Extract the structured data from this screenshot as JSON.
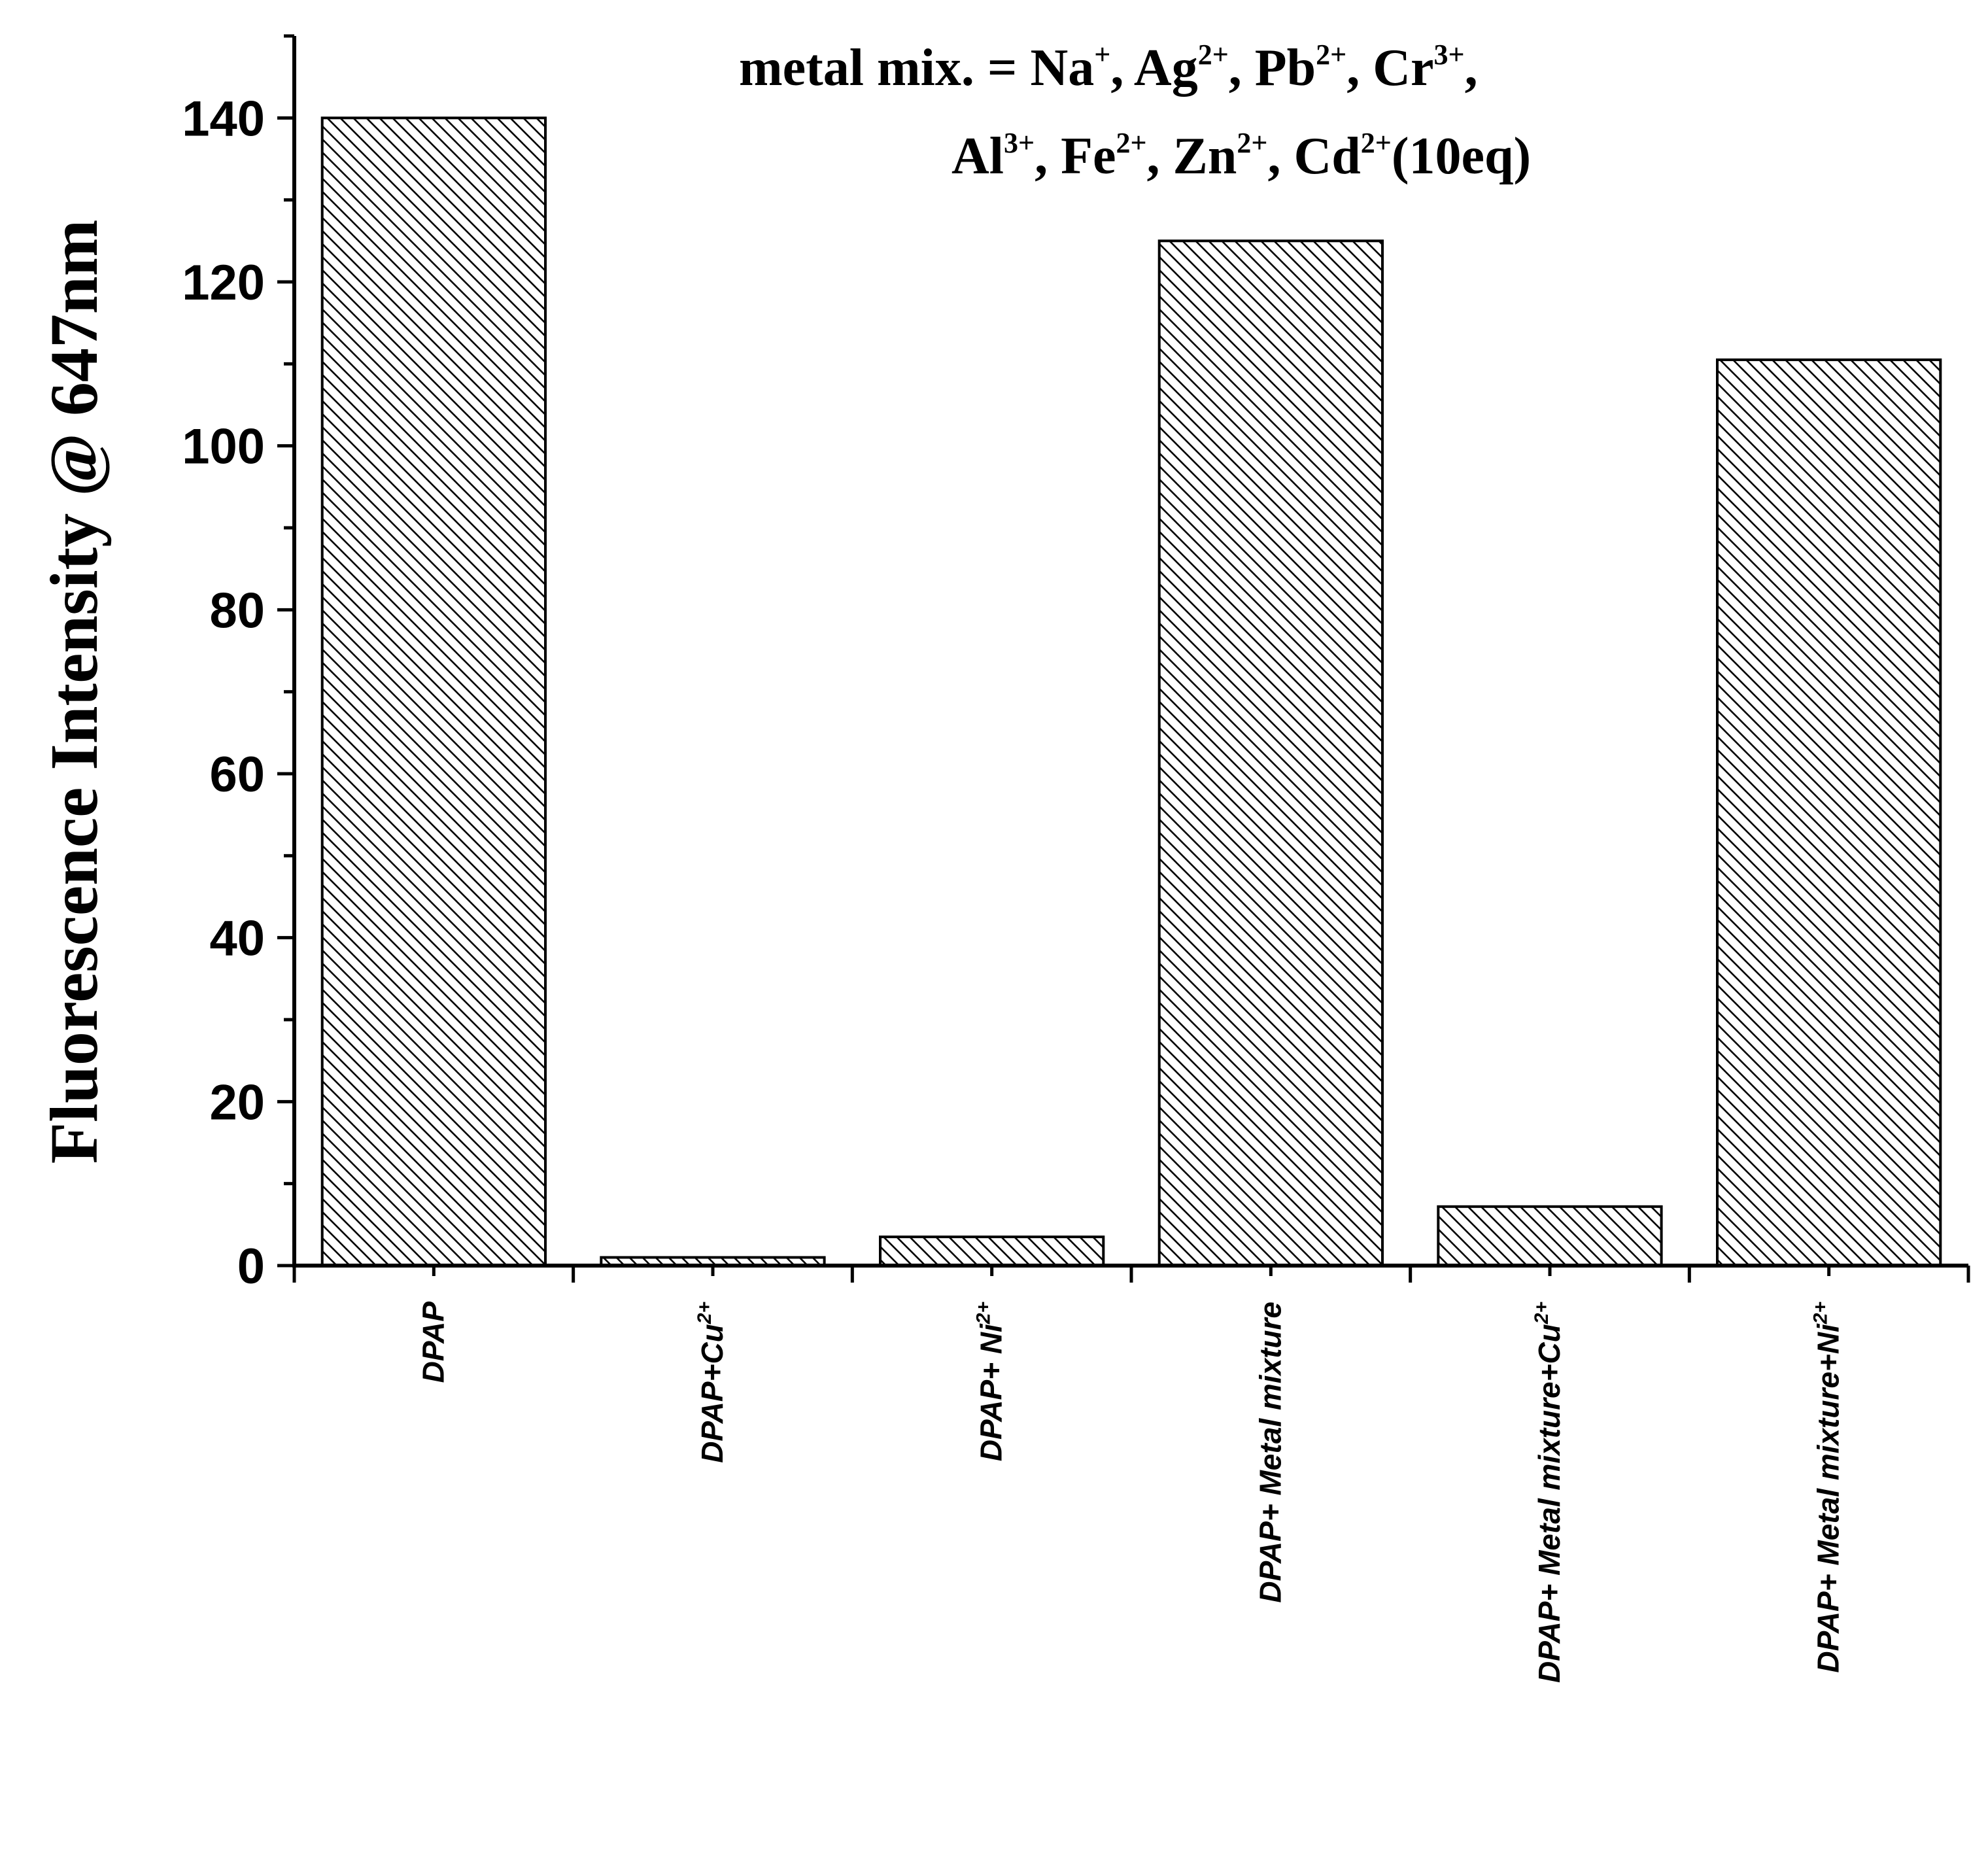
{
  "chart_data": {
    "type": "bar",
    "categories": [
      [
        "DPAP",
        ""
      ],
      [
        "DPAP+Cu",
        "2+"
      ],
      [
        "DPAP+ Ni",
        "2+"
      ],
      [
        "DPAP+ Metal mixture",
        ""
      ],
      [
        "DPAP+ Metal mixture+Cu",
        "2+"
      ],
      [
        "DPAP+ Metal mixture+Ni",
        "2+"
      ]
    ],
    "values": [
      140,
      1,
      3.5,
      125,
      7.2,
      110.5
    ],
    "ylabel": "Fluorescence Intensity @ 647nm",
    "xlabel": "",
    "ylim": [
      0,
      150
    ],
    "yticks": [
      0,
      20,
      40,
      60,
      80,
      100,
      120,
      140
    ],
    "ytick_labels": [
      "0",
      "20",
      "40",
      "60",
      "80",
      "100",
      "120",
      "140"
    ],
    "bar_fill": "hatched-diagonal",
    "bar_color": "#000000",
    "grid": false,
    "annotation": {
      "line1": [
        [
          "metal mix. = Na",
          ""
        ],
        [
          "",
          "+"
        ],
        [
          ", Ag",
          ""
        ],
        [
          "",
          "2+"
        ],
        [
          ", Pb",
          ""
        ],
        [
          "",
          "2+"
        ],
        [
          ", Cr",
          ""
        ],
        [
          "",
          "3+"
        ],
        [
          ",",
          ""
        ]
      ],
      "line2": [
        [
          "Al",
          ""
        ],
        [
          "",
          "3+"
        ],
        [
          ", Fe",
          ""
        ],
        [
          "",
          "2+"
        ],
        [
          ", Zn",
          ""
        ],
        [
          "",
          "2+"
        ],
        [
          ", Cd",
          ""
        ],
        [
          "",
          "2+"
        ],
        [
          "(10eq)",
          ""
        ]
      ]
    }
  }
}
